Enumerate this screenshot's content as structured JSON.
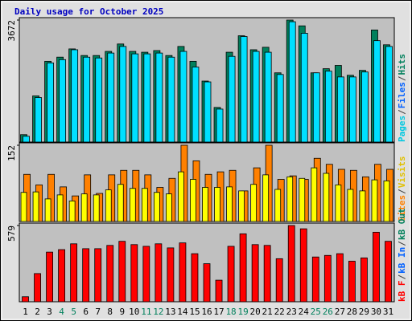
{
  "chart_data": [
    {
      "type": "bar",
      "title": "Daily usage for October 2025",
      "ylim": [
        0,
        3672
      ],
      "yticks": [
        3672
      ],
      "series": [
        {
          "name": "Hits",
          "color": "#00805c",
          "values": [
            223,
            1389,
            2431,
            2556,
            2804,
            2605,
            2605,
            2729,
            2952,
            2729,
            2704,
            2754,
            2605,
            2878,
            2431,
            1836,
            1042,
            2704,
            3200,
            2779,
            2853,
            2084,
            3672,
            3498,
            2084,
            2208,
            2307,
            2010,
            2158,
            3374,
            2928
          ]
        },
        {
          "name": "Pages",
          "color": "#00e0ff",
          "values": [
            174,
            1340,
            2382,
            2481,
            2779,
            2555,
            2531,
            2679,
            2878,
            2655,
            2655,
            2679,
            2555,
            2729,
            2258,
            1811,
            992,
            2580,
            3176,
            2729,
            2704,
            2034,
            3622,
            3275,
            2084,
            2134,
            1960,
            1960,
            2109,
            3052,
            2878
          ]
        }
      ],
      "legend": [
        {
          "text": "Pages",
          "color": "#00c8e0"
        },
        {
          "text": "Files",
          "color": "#0060ff"
        },
        {
          "text": "Hits",
          "color": "#00805c"
        }
      ],
      "legend_separator": "/"
    },
    {
      "type": "bar",
      "ylim": [
        0,
        152
      ],
      "yticks": [
        152
      ],
      "series": [
        {
          "name": "Sites",
          "color": "#ff8000",
          "values": [
            94,
            73,
            94,
            69,
            51,
            93,
            56,
            93,
            102,
            102,
            93,
            68,
            86,
            152,
            121,
            94,
            99,
            102,
            61,
            107,
            152,
            84,
            91,
            84,
            126,
            114,
            104,
            102,
            89,
            114,
            104
          ]
        },
        {
          "name": "Visits",
          "color": "#ffff00",
          "values": [
            58,
            59,
            45,
            53,
            41,
            55,
            53,
            63,
            74,
            66,
            66,
            58,
            55,
            99,
            84,
            68,
            68,
            69,
            61,
            74,
            93,
            64,
            89,
            86,
            107,
            96,
            73,
            64,
            61,
            83,
            81
          ]
        }
      ],
      "legend": [
        {
          "text": "Sites",
          "color": "#ff8000"
        },
        {
          "text": "Visits",
          "color": "#e0c000"
        }
      ],
      "legend_separator": "/"
    },
    {
      "type": "bar",
      "ylim": [
        0,
        579
      ],
      "yticks": [
        579
      ],
      "categories": [
        "1",
        "2",
        "3",
        "4",
        "5",
        "6",
        "7",
        "8",
        "9",
        "10",
        "11",
        "12",
        "13",
        "14",
        "15",
        "16",
        "17",
        "18",
        "19",
        "20",
        "21",
        "22",
        "23",
        "24",
        "25",
        "26",
        "27",
        "28",
        "29",
        "30",
        "31"
      ],
      "category_colors": [
        "#000",
        "#000",
        "#000",
        "#00805c",
        "#00805c",
        "#000",
        "#000",
        "#000",
        "#000",
        "#000",
        "#00805c",
        "#00805c",
        "#000",
        "#000",
        "#000",
        "#000",
        "#000",
        "#00805c",
        "#00805c",
        "#000",
        "#000",
        "#000",
        "#000",
        "#000",
        "#00805c",
        "#00805c",
        "#000",
        "#000",
        "#000",
        "#000",
        "#000"
      ],
      "series": [
        {
          "name": "kB F",
          "color": "#ff0000",
          "values": [
            38,
            214,
            377,
            396,
            440,
            403,
            403,
            428,
            459,
            434,
            421,
            440,
            409,
            447,
            365,
            289,
            164,
            421,
            516,
            434,
            428,
            327,
            579,
            554,
            340,
            352,
            365,
            308,
            333,
            528,
            459
          ]
        }
      ],
      "legend": [
        {
          "text": "kB F",
          "color": "#ff0000"
        },
        {
          "text": "kB In",
          "color": "#0060ff"
        },
        {
          "text": "kB Out",
          "color": "#00805c"
        }
      ],
      "legend_separator": "/"
    }
  ]
}
